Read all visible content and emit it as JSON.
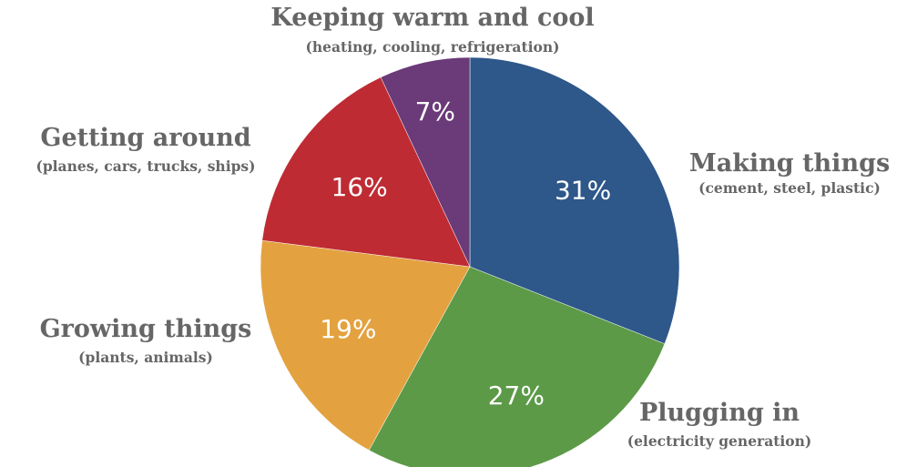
{
  "chart_data": {
    "type": "pie",
    "title": "",
    "slices": [
      {
        "label": "Making things",
        "sublabel": "(cement, steel, plastic)",
        "value": 31,
        "value_label": "31%",
        "color": "#2e578a"
      },
      {
        "label": "Plugging in",
        "sublabel": "(electricity generation)",
        "value": 27,
        "value_label": "27%",
        "color": "#5c9a48"
      },
      {
        "label": "Growing things",
        "sublabel": "(plants, animals)",
        "value": 19,
        "value_label": "19%",
        "color": "#e3a23f"
      },
      {
        "label": "Getting around",
        "sublabel": "(planes, cars, trucks, ships)",
        "value": 16,
        "value_label": "16%",
        "color": "#bf2b33"
      },
      {
        "label": "Keeping warm and cool",
        "sublabel": "(heating, cooling, refrigeration)",
        "value": 7,
        "value_label": "7%",
        "color": "#6b3a78"
      }
    ],
    "start": "12 o'clock",
    "direction": "clockwise"
  }
}
